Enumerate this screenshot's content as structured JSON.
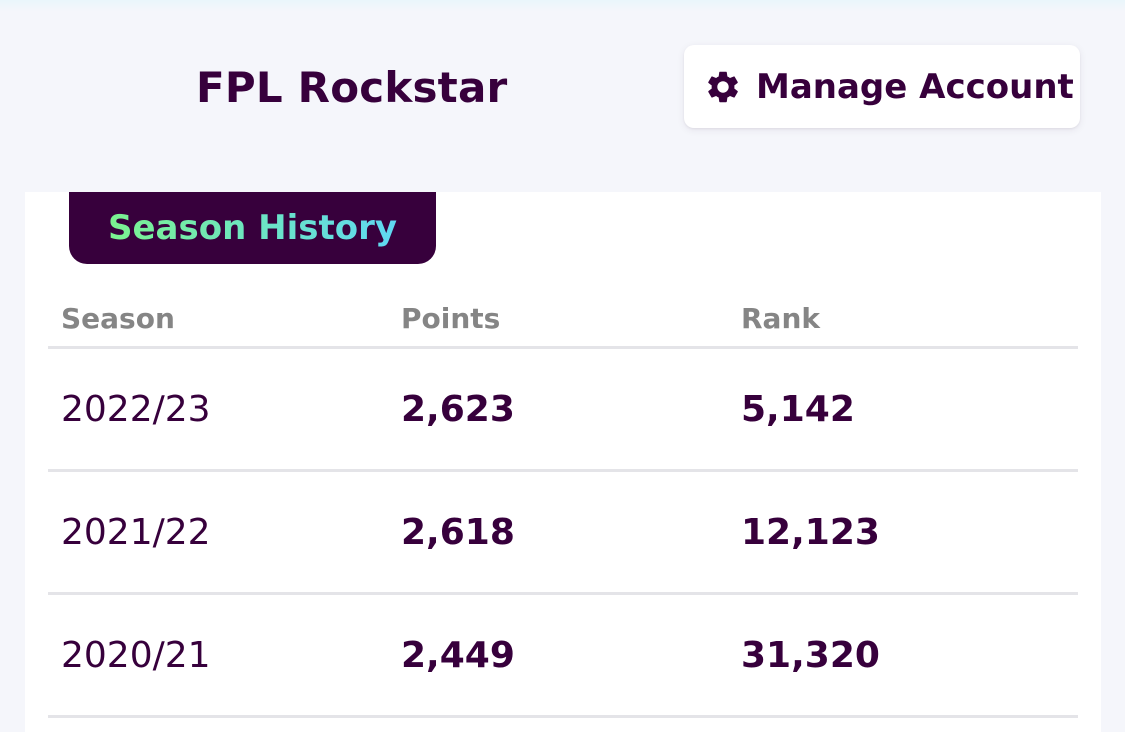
{
  "header": {
    "team_name": "FPL Rockstar",
    "manage_account_label": "Manage Account"
  },
  "season_history": {
    "tab_label": "Season History",
    "columns": {
      "season": "Season",
      "points": "Points",
      "rank": "Rank"
    },
    "rows": [
      {
        "season": "2022/23",
        "points": "2,623",
        "rank": "5,142"
      },
      {
        "season": "2021/22",
        "points": "2,618",
        "rank": "12,123"
      },
      {
        "season": "2020/21",
        "points": "2,449",
        "rank": "31,320"
      }
    ]
  },
  "colors": {
    "primary": "#37003c",
    "tab_gradient_start": "#7bf28f",
    "tab_gradient_end": "#5fd8f3",
    "header_text": "#858585",
    "divider": "#e4e4e8"
  },
  "icons": {
    "manage_account": "gear-icon"
  }
}
